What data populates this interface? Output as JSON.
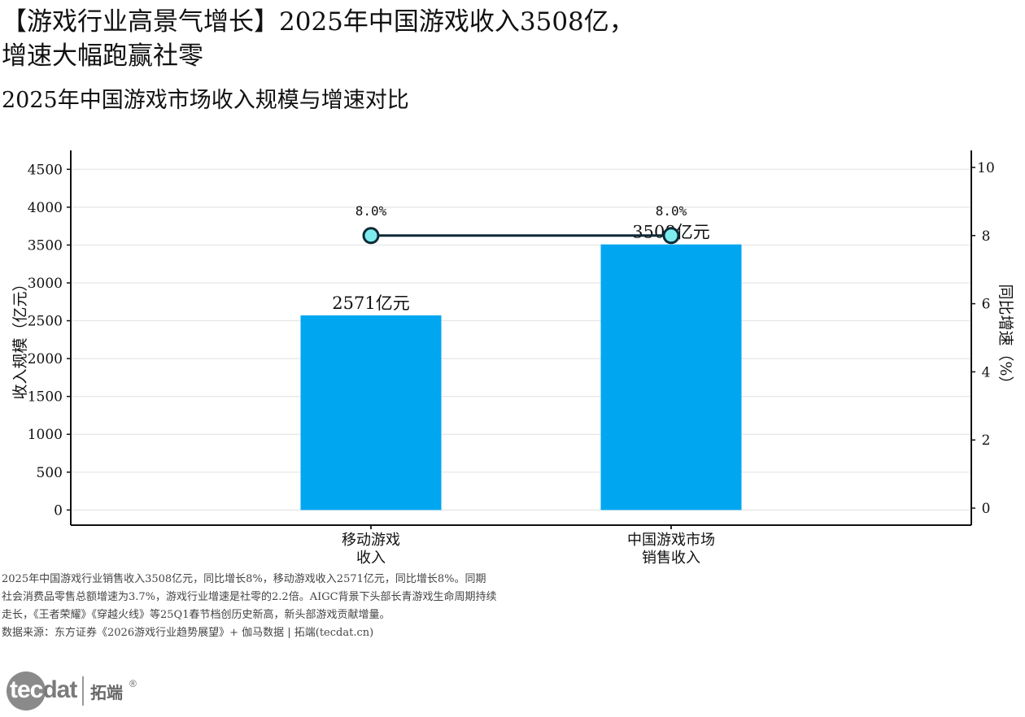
{
  "title": "【游戏行业高景气增长】2025年中国游戏收入3508亿，\n增速大幅跑赢社零",
  "subtitle": "2025年中国游戏市场收入规模与增速对比",
  "chart_data": {
    "type": "bar",
    "categories": [
      [
        "移动游戏",
        "收入"
      ],
      [
        "中国游戏市场",
        "销售收入"
      ]
    ],
    "series": [
      {
        "values": [
          2571,
          3508
        ],
        "axis": "left",
        "color": "#00a7f0",
        "data_labels": [
          "2571亿元",
          "3508亿元"
        ]
      },
      {
        "type": "line",
        "values": [
          8.0,
          8.0
        ],
        "axis": "right",
        "color": "#0e2a35",
        "marker_fill": "#7cecef",
        "data_labels": [
          "8.0%",
          "8.0%"
        ]
      }
    ],
    "ylabel": "收入规模（亿元）",
    "y2label": "同比增速（%）",
    "ylim": [
      -200,
      4750
    ],
    "y_ticks": [
      0,
      500,
      1000,
      1500,
      2000,
      2500,
      3000,
      3500,
      4000,
      4500
    ],
    "y2lim": [
      -0.5,
      10.5
    ],
    "y2_ticks": [
      0,
      2,
      4,
      6,
      8,
      10
    ],
    "grid": true,
    "legend": "none"
  },
  "notes": [
    "2025年中国游戏行业销售收入3508亿元，同比增长8%，移动游戏收入2571亿元，同比增长8%。同期",
    "社会消费品零售总额增速为3.7%，游戏行业增速是社零的2.2倍。AIGC背景下头部长青游戏生命周期持续",
    "走长，《王者荣耀》《穿越火线》等25Q1春节档创历史新高，新头部游戏贡献增量。",
    "数据来源：东方证券《2026游戏行业趋势展望》+ 伽马数据 | 拓端(tecdat.cn)"
  ],
  "logo": {
    "tec": "tec",
    "dat": "dat",
    "cn": "拓端",
    "reg": "®"
  }
}
